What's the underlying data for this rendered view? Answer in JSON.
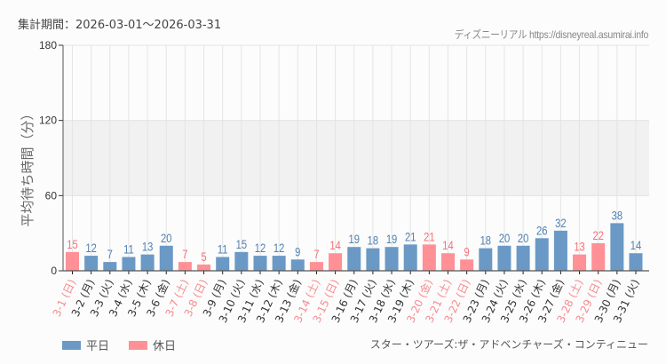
{
  "header": {
    "period_label": "集計期間：2026-03-01～2026-03-31",
    "credit": "ディズニーリアル https://disneyreal.asumirai.info"
  },
  "legend": {
    "weekday_label": "平日",
    "holiday_label": "休日"
  },
  "attraction_name": "スター・ツアーズ:ザ・アドベンチャーズ・コンティニュー",
  "colors": {
    "weekday": "#6b99c5",
    "holiday": "#ff9096",
    "weekday_text": "#4f80b3",
    "holiday_text": "#f7707a",
    "band": "#f1f1f1",
    "grid": "#e4e4e4"
  },
  "chart_data": {
    "type": "bar",
    "title": "",
    "xlabel": "",
    "ylabel": "平均待ち時間（分）",
    "ylim": [
      0,
      180
    ],
    "yticks": [
      0,
      60,
      120,
      180
    ],
    "shaded_band": [
      60,
      120
    ],
    "grid": true,
    "legend_position": "bottom-left",
    "categories": [
      "3-1 (日)",
      "3-2 (月)",
      "3-3 (火)",
      "3-4 (水)",
      "3-5 (木)",
      "3-6 (金)",
      "3-7 (土)",
      "3-8 (日)",
      "3-9 (月)",
      "3-10 (火)",
      "3-11 (水)",
      "3-12 (木)",
      "3-13 (金)",
      "3-14 (土)",
      "3-15 (日)",
      "3-16 (月)",
      "3-17 (火)",
      "3-18 (水)",
      "3-19 (木)",
      "3-20 (金)",
      "3-21 (土)",
      "3-22 (日)",
      "3-23 (月)",
      "3-24 (火)",
      "3-25 (水)",
      "3-26 (木)",
      "3-27 (金)",
      "3-28 (土)",
      "3-29 (日)",
      "3-30 (月)",
      "3-31 (火)"
    ],
    "values": [
      15,
      12,
      7,
      11,
      13,
      20,
      7,
      5,
      11,
      15,
      12,
      12,
      9,
      7,
      14,
      19,
      18,
      19,
      21,
      21,
      14,
      9,
      18,
      20,
      20,
      26,
      32,
      13,
      22,
      38,
      14
    ],
    "day_type": [
      "休日",
      "平日",
      "平日",
      "平日",
      "平日",
      "平日",
      "休日",
      "休日",
      "平日",
      "平日",
      "平日",
      "平日",
      "平日",
      "休日",
      "休日",
      "平日",
      "平日",
      "平日",
      "平日",
      "休日",
      "休日",
      "休日",
      "平日",
      "平日",
      "平日",
      "平日",
      "平日",
      "休日",
      "休日",
      "平日",
      "平日"
    ],
    "series": [
      {
        "name": "平日",
        "color": "#6b99c5"
      },
      {
        "name": "休日",
        "color": "#ff9096"
      }
    ]
  }
}
